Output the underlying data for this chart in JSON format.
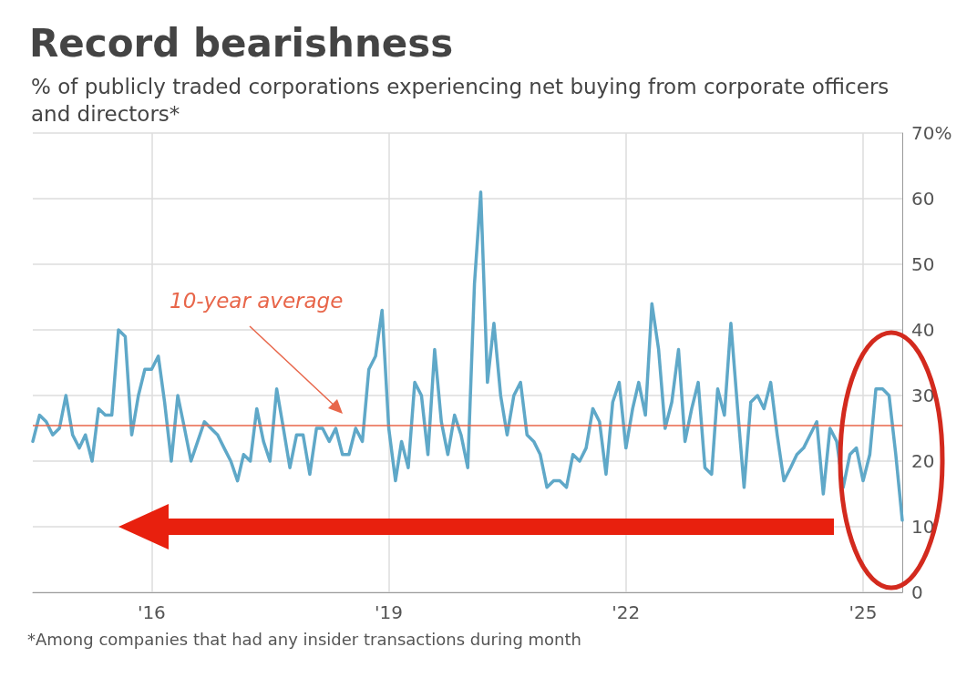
{
  "chart_data": {
    "type": "line",
    "title": "Record bearishness",
    "subtitle": "% of publicly traded corporations experiencing net buying from corporate officers and directors*",
    "x": [
      "2014-07",
      "2014-08",
      "2014-09",
      "2014-10",
      "2014-11",
      "2014-12",
      "2015-01",
      "2015-02",
      "2015-03",
      "2015-04",
      "2015-05",
      "2015-06",
      "2015-07",
      "2015-08",
      "2015-09",
      "2015-10",
      "2015-11",
      "2015-12",
      "2016-01",
      "2016-02",
      "2016-03",
      "2016-04",
      "2016-05",
      "2016-06",
      "2016-07",
      "2016-08",
      "2016-09",
      "2016-10",
      "2016-11",
      "2016-12",
      "2017-01",
      "2017-02",
      "2017-03",
      "2017-04",
      "2017-05",
      "2017-06",
      "2017-07",
      "2017-08",
      "2017-09",
      "2017-10",
      "2017-11",
      "2017-12",
      "2018-01",
      "2018-02",
      "2018-03",
      "2018-04",
      "2018-05",
      "2018-06",
      "2018-07",
      "2018-08",
      "2018-09",
      "2018-10",
      "2018-11",
      "2018-12",
      "2019-01",
      "2019-02",
      "2019-03",
      "2019-04",
      "2019-05",
      "2019-06",
      "2019-07",
      "2019-08",
      "2019-09",
      "2019-10",
      "2019-11",
      "2019-12",
      "2020-01",
      "2020-02",
      "2020-03",
      "2020-04",
      "2020-05",
      "2020-06",
      "2020-07",
      "2020-08",
      "2020-09",
      "2020-10",
      "2020-11",
      "2020-12",
      "2021-01",
      "2021-02",
      "2021-03",
      "2021-04",
      "2021-05",
      "2021-06",
      "2021-07",
      "2021-08",
      "2021-09",
      "2021-10",
      "2021-11",
      "2021-12",
      "2022-01",
      "2022-02",
      "2022-03",
      "2022-04",
      "2022-05",
      "2022-06",
      "2022-07",
      "2022-08",
      "2022-09",
      "2022-10",
      "2022-11",
      "2022-12",
      "2023-01",
      "2023-02",
      "2023-03",
      "2023-04",
      "2023-05",
      "2023-06",
      "2023-07",
      "2023-08",
      "2023-09",
      "2023-10",
      "2023-11",
      "2023-12",
      "2024-01",
      "2024-02",
      "2024-03",
      "2024-04",
      "2024-05",
      "2024-06",
      "2024-07",
      "2024-08",
      "2024-09",
      "2024-10",
      "2024-11",
      "2024-12",
      "2025-01",
      "2025-02",
      "2025-03",
      "2025-04",
      "2025-05",
      "2025-06",
      "2025-07"
    ],
    "series": [
      {
        "color": "#5fa8c8",
        "values": [
          23,
          27,
          26,
          24,
          25,
          30,
          24,
          22,
          24,
          20,
          28,
          27,
          27,
          40,
          39,
          24,
          30,
          34,
          34,
          36,
          29,
          20,
          30,
          25,
          20,
          23,
          26,
          25,
          24,
          22,
          20,
          17,
          21,
          20,
          28,
          23,
          20,
          31,
          25,
          19,
          24,
          24,
          18,
          25,
          25,
          23,
          25,
          21,
          21,
          25,
          23,
          34,
          36,
          43,
          25,
          17,
          23,
          19,
          32,
          30,
          21,
          37,
          26,
          21,
          27,
          24,
          19,
          47,
          61,
          32,
          41,
          30,
          24,
          30,
          32,
          24,
          23,
          21,
          16,
          17,
          17,
          16,
          21,
          20,
          22,
          28,
          26,
          18,
          29,
          32,
          22,
          28,
          32,
          27,
          44,
          37,
          25,
          29,
          37,
          23,
          28,
          32,
          19,
          18,
          31,
          27,
          41,
          28,
          16,
          29,
          30,
          28,
          32,
          24,
          17,
          19,
          21,
          22,
          24,
          26,
          15,
          25,
          23,
          16,
          21,
          22,
          17,
          21,
          31,
          31,
          30,
          21,
          11
        ]
      }
    ],
    "xlim": [
      "2014-07",
      "2025-07"
    ],
    "xticks": [
      {
        "value": "2016-01",
        "label": "'16"
      },
      {
        "value": "2019-01",
        "label": "'19"
      },
      {
        "value": "2022-01",
        "label": "'22"
      },
      {
        "value": "2025-01",
        "label": "'25"
      }
    ],
    "ylim": [
      0,
      70
    ],
    "yticks": [
      0,
      10,
      20,
      30,
      40,
      50,
      60,
      {
        "value": 70,
        "label": "70%"
      }
    ],
    "grid": true,
    "marker": "none",
    "line_style": "solid",
    "ref_lines": [
      {
        "axis": "y",
        "value": 25.5,
        "label": "10-year average",
        "color": "#e8664a"
      }
    ],
    "annotations": [
      "*Among companies that had any insider transactions during month"
    ]
  }
}
